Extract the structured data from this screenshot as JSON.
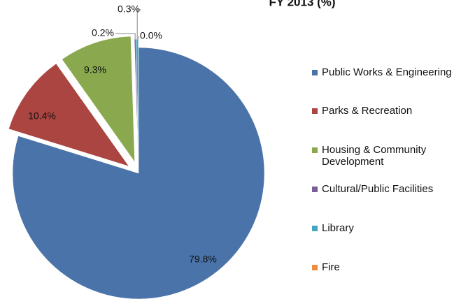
{
  "chart_data": {
    "type": "pie",
    "title": "FY 2013 (%)",
    "categories": [
      "Public Works & Engineering",
      "Parks & Recreation",
      "Housing & Community Development",
      "Cultural/Public Facilities",
      "Library",
      "Fire"
    ],
    "values": [
      79.8,
      10.4,
      9.3,
      0.2,
      0.3,
      0.0
    ],
    "value_labels": [
      "79.8%",
      "10.4%",
      "9.3%",
      "0.2%",
      "0.3%",
      "0.0%"
    ],
    "colors": [
      "#4a73a9",
      "#ab4542",
      "#8aa94f",
      "#7a5e99",
      "#46a5c0",
      "#f08c3e"
    ],
    "legend": "right"
  }
}
